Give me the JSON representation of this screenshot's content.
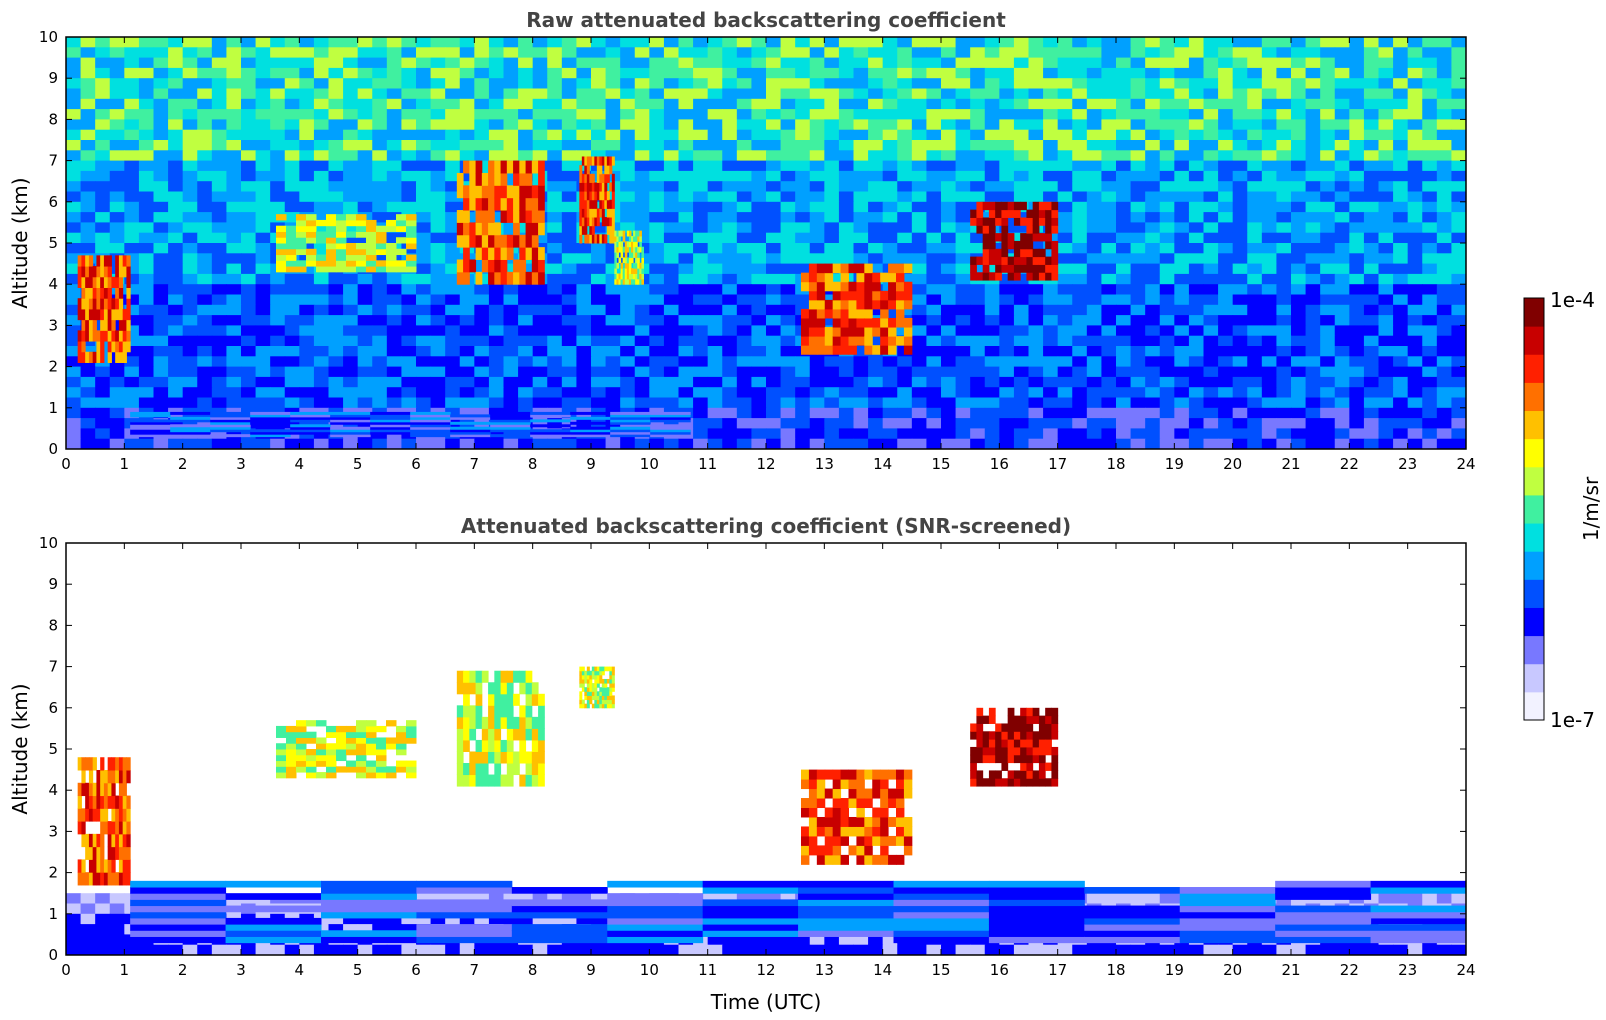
{
  "chart_data": [
    {
      "type": "heatmap",
      "title": "Raw attenuated backscattering coefficient",
      "xlabel": "",
      "ylabel": "Altitude (km)",
      "xlim": [
        0,
        24
      ],
      "ylim": [
        0,
        10
      ],
      "xticks": [
        "0",
        "1",
        "2",
        "3",
        "4",
        "5",
        "6",
        "7",
        "8",
        "9",
        "10",
        "11",
        "12",
        "13",
        "14",
        "15",
        "16",
        "17",
        "18",
        "19",
        "20",
        "21",
        "22",
        "23",
        "24"
      ],
      "yticks": [
        "0",
        "1",
        "2",
        "3",
        "4",
        "5",
        "6",
        "7",
        "8",
        "9",
        "10"
      ],
      "features": [
        {
          "description_label": "",
          "t_start": 0.2,
          "t_end": 1.1,
          "alt_base": 2.1,
          "alt_top": 4.7,
          "intensity": "high"
        },
        {
          "t_start": 3.6,
          "t_end": 6.0,
          "alt_base": 4.3,
          "alt_top": 5.7,
          "intensity": "medium"
        },
        {
          "t_start": 6.7,
          "t_end": 8.2,
          "alt_base": 4.0,
          "alt_top": 7.0,
          "intensity": "high"
        },
        {
          "t_start": 8.8,
          "t_end": 9.4,
          "alt_base": 5.0,
          "alt_top": 7.1,
          "intensity": "high"
        },
        {
          "t_start": 9.4,
          "t_end": 9.9,
          "alt_base": 4.0,
          "alt_top": 5.3,
          "intensity": "medium"
        },
        {
          "t_start": 12.6,
          "t_end": 14.5,
          "alt_base": 2.3,
          "alt_top": 4.5,
          "intensity": "high"
        },
        {
          "t_start": 15.5,
          "t_end": 17.0,
          "alt_base": 4.1,
          "alt_top": 6.0,
          "intensity": "very high"
        },
        {
          "t_start": 1.1,
          "t_end": 10.7,
          "alt_base": 0.3,
          "alt_top": 0.9,
          "intensity": "boundary layer"
        }
      ]
    },
    {
      "type": "heatmap",
      "title": "Attenuated backscattering coefficient (SNR-screened)",
      "xlabel": "Time (UTC)",
      "ylabel": "Altitude (km)",
      "xlim": [
        0,
        24
      ],
      "ylim": [
        0,
        10
      ],
      "xticks": [
        "0",
        "1",
        "2",
        "3",
        "4",
        "5",
        "6",
        "7",
        "8",
        "9",
        "10",
        "11",
        "12",
        "13",
        "14",
        "15",
        "16",
        "17",
        "18",
        "19",
        "20",
        "21",
        "22",
        "23",
        "24"
      ],
      "yticks": [
        "0",
        "1",
        "2",
        "3",
        "4",
        "5",
        "6",
        "7",
        "8",
        "9",
        "10"
      ],
      "features": [
        {
          "t_start": 0.2,
          "t_end": 1.1,
          "alt_base": 1.7,
          "alt_top": 4.8,
          "intensity": "high"
        },
        {
          "t_start": 3.6,
          "t_end": 6.0,
          "alt_base": 4.3,
          "alt_top": 5.7,
          "intensity": "medium"
        },
        {
          "t_start": 6.7,
          "t_end": 8.2,
          "alt_base": 4.1,
          "alt_top": 6.9,
          "intensity": "medium"
        },
        {
          "t_start": 8.8,
          "t_end": 9.4,
          "alt_base": 6.0,
          "alt_top": 7.0,
          "intensity": "medium"
        },
        {
          "t_start": 12.6,
          "t_end": 14.5,
          "alt_base": 2.2,
          "alt_top": 4.5,
          "intensity": "high"
        },
        {
          "t_start": 15.5,
          "t_end": 17.0,
          "alt_base": 4.1,
          "alt_top": 6.0,
          "intensity": "very high"
        },
        {
          "t_start": 1.1,
          "t_end": 24.0,
          "alt_base": 0.3,
          "alt_top": 1.8,
          "intensity": "boundary layer"
        }
      ]
    }
  ],
  "colorbar": {
    "label": "1/m/sr",
    "max_label": "1e-4",
    "min_label": "1e-7",
    "scale": "log",
    "colormap": [
      "#f2f2ff",
      "#c8c8ff",
      "#7878ff",
      "#0000ff",
      "#0050ff",
      "#00a0ff",
      "#00e0e0",
      "#40f0a0",
      "#c0ff40",
      "#ffff00",
      "#ffc000",
      "#ff7000",
      "#ff2000",
      "#c80000",
      "#800000"
    ]
  }
}
